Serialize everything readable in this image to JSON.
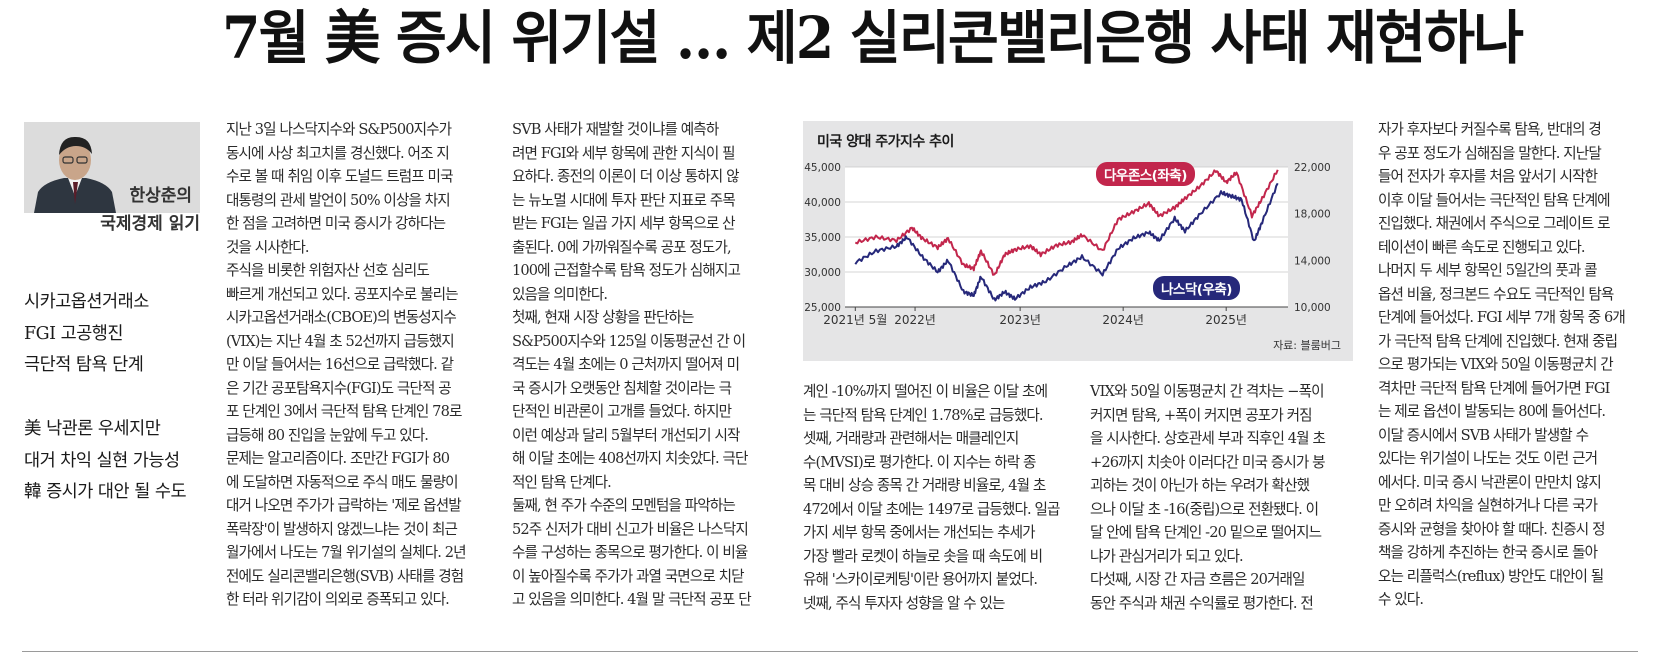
{
  "headline": "7월 美 증시 위기설 … 제2 실리콘밸리은행 사태 재현하나",
  "columnist": {
    "name": "한상춘의",
    "column_title": "국제경제 읽기"
  },
  "subheads": [
    [
      "시카고옵션거래소",
      "FGI 고공행진",
      "극단적 탐욕 단계"
    ],
    [
      "美 낙관론 우세지만",
      "대거 차익 실현 가능성",
      "韓 증시가 대안 될 수도"
    ]
  ],
  "columns": [
    [
      "지난 3일 나스닥지수와 S&P500지수가",
      "동시에 사상 최고치를 경신했다. 어조 지",
      "수로 볼 때 취임 이후 도널드 트럼프 미국",
      "대통령의 관세 발언이 50% 이상을 차지",
      "한 점을 고려하면 미국 증시가 강하다는",
      "것을 시사한다.",
      "  주식을 비롯한 위험자산 선호 심리도",
      "빠르게 개선되고 있다. 공포지수로 불리는",
      "시카고옵션거래소(CBOE)의 변동성지수",
      "(VIX)는 지난 4월 초 52선까지 급등했지",
      "만 이달 들어서는 16선으로 급락했다. 같",
      "은 기간 공포탐욕지수(FGI)도 극단적 공",
      "포 단계인 3에서 극단적 탐욕 단계인 78로",
      "급등해 80 진입을 눈앞에 두고 있다.",
      "  문제는 알고리즘이다. 조만간 FGI가 80",
      "에 도달하면 자동적으로 주식 매도 물량이",
      "대거 나오면 주가가 급락하는 '제로 옵션발",
      "폭락장'이 발생하지 않겠느냐는 것이 최근",
      "월가에서 나도는 7월 위기설의 실체다. 2년",
      "전에도 실리콘밸리은행(SVB) 사태를 경험",
      "한 터라 위기감이 의외로 증폭되고 있다."
    ],
    [
      "  SVB 사태가 재발할 것이냐를 예측하",
      "려면 FGI와 세부 항목에 관한 지식이 필",
      "요하다. 종전의 이론이 더 이상 통하지 않",
      "는 뉴노멀 시대에 투자 판단 지표로 주목",
      "받는 FGI는 일곱 가지 세부 항목으로 산",
      "출된다. 0에 가까워질수록 공포 정도가,",
      "100에 근접할수록 탐욕 정도가 심해지고",
      "있음을 의미한다.",
      "  첫째, 현재 시장 상황을 판단하는",
      "S&P500지수와 125일 이동평균선 간 이",
      "격도는 4월 초에는 0 근처까지 떨어져 미",
      "국 증시가 오랫동안 침체할 것이라는 극",
      "단적인 비관론이 고개를 들었다. 하지만",
      "이런 예상과 달리 5월부터 개선되기 시작",
      "해 이달 초에는 408선까지 치솟았다. 극단",
      "적인 탐욕 단계다.",
      "  둘째, 현 주가 수준의 모멘텀을 파악하는",
      "52주 신저가 대비 신고가 비율은 나스닥지",
      "수를 구성하는 종목으로 평가한다. 이 비율",
      "이 높아질수록 주가가 과열 국면으로 치닫",
      "고 있음을 의미한다. 4월 말 극단적 공포 단"
    ],
    [
      "계인 -10%까지 떨어진 이 비율은 이달 초에",
      "는 극단적 탐욕 단계인 1.78%로 급등했다.",
      "  셋째, 거래량과 관련해서는 매클레인지",
      "수(MVSI)로 평가한다. 이 지수는 하락 종",
      "목 대비 상승 종목 간 거래량 비율로, 4월 초",
      "472에서 이달 초에는 1497로 급등했다. 일곱",
      "가지 세부 항목 중에서는 개선되는 추세가",
      "가장 빨라 로켓이 하늘로 솟을 때 속도에 비",
      "유해 '스카이로케팅'이란 용어까지 붙었다.",
      "  넷째, 주식 투자자 성향을 알 수 있는"
    ],
    [
      "VIX와 50일 이동평균치 간 격차는 −폭이",
      "커지면 탐욕, +폭이 커지면 공포가 커짐",
      "을 시사한다. 상호관세 부과 직후인 4월 초",
      "+26까지 치솟아 이러다간 미국 증시가 붕",
      "괴하는 것이 아닌가 하는 우려가 확산했",
      "으나 이달 초 -16(중립)으로 전환됐다. 이",
      "달 안에 탐욕 단계인 -20 밑으로 떨어지느",
      "냐가 관심거리가 되고 있다.",
      "  다섯째, 시장 간 자금 흐름은 20거래일",
      "동안 주식과 채권 수익률로 평가한다. 전"
    ],
    [
      "자가 후자보다 커질수록 탐욕, 반대의 경",
      "우 공포 정도가 심해짐을 말한다. 지난달",
      "들어 전자가 후자를 처음 앞서기 시작한",
      "이후 이달 들어서는 극단적인 탐욕 단계에",
      "진입했다. 채권에서 주식으로 그레이트 로",
      "테이션이 빠른 속도로 진행되고 있다.",
      "  나머지 두 세부 항목인 5일간의 풋과 콜",
      "옵션 비율, 정크본드 수요도 극단적인 탐욕",
      "단계에 들어섰다. FGI 세부 7개 항목 중 6개",
      "가 극단적 탐욕 단계에 진입했다. 현재 중립",
      "으로 평가되는 VIX와 50일 이동평균치 간",
      "격차만 극단적 탐욕 단계에 들어가면 FGI",
      "는 제로 옵션이 발동되는 80에 들어선다.",
      "  이달 증시에서 SVB 사태가 발생할 수",
      "있다는 위기설이 나도는 것도 이런 근거",
      "에서다. 미국 증시 낙관론이 만만치 않지",
      "만 오히려 차익을 실현하거나 다른 국가",
      "증시와 균형을 찾아야 할 때다. 친증시 정",
      "책을 강하게 추진하는 한국 증시로 돌아",
      "오는 리플럭스(reflux) 방안도 대안이 될",
      "수 있다."
    ]
  ],
  "chart": {
    "title": "미국 양대 주가지수 추이",
    "source": "자료: 블룸버그",
    "colors": {
      "dow": "#c2264c",
      "nasdaq": "#26287a"
    },
    "chart_data": {
      "type": "line",
      "title": "미국 양대 주가지수 추이",
      "x_ticks": [
        "2021년 5월",
        "2022년",
        "2023년",
        "2024년",
        "2025년"
      ],
      "left_axis": {
        "ticks": [
          "45,000",
          "40,000",
          "35,000",
          "30,000",
          "25,000"
        ],
        "ylim": [
          25000,
          45000
        ]
      },
      "right_axis": {
        "ticks": [
          "22,000",
          "18,000",
          "14,000",
          "10,000"
        ],
        "ylim": [
          10000,
          22000
        ]
      },
      "series": [
        {
          "name": "다우존스(좌축)",
          "axis": "left",
          "points": [
            [
              2021.4,
              34200
            ],
            [
              2021.6,
              35000
            ],
            [
              2021.8,
              34500
            ],
            [
              2021.95,
              36300
            ],
            [
              2022.05,
              34800
            ],
            [
              2022.2,
              33500
            ],
            [
              2022.3,
              34800
            ],
            [
              2022.45,
              31000
            ],
            [
              2022.55,
              30500
            ],
            [
              2022.62,
              33000
            ],
            [
              2022.75,
              29500
            ],
            [
              2022.85,
              32500
            ],
            [
              2022.95,
              33200
            ],
            [
              2023.1,
              33700
            ],
            [
              2023.2,
              32500
            ],
            [
              2023.35,
              33800
            ],
            [
              2023.5,
              34300
            ],
            [
              2023.6,
              35300
            ],
            [
              2023.8,
              33000
            ],
            [
              2023.95,
              37500
            ],
            [
              2024.1,
              38600
            ],
            [
              2024.25,
              39800
            ],
            [
              2024.35,
              38000
            ],
            [
              2024.5,
              39200
            ],
            [
              2024.6,
              40500
            ],
            [
              2024.75,
              42300
            ],
            [
              2024.9,
              44500
            ],
            [
              2025.0,
              42800
            ],
            [
              2025.1,
              44200
            ],
            [
              2025.25,
              38000
            ],
            [
              2025.35,
              40500
            ],
            [
              2025.5,
              44600
            ]
          ]
        },
        {
          "name": "나스닥(우축)",
          "axis": "right",
          "points": [
            [
              2021.4,
              13800
            ],
            [
              2021.6,
              14800
            ],
            [
              2021.8,
              15200
            ],
            [
              2021.9,
              16000
            ],
            [
              2022.05,
              14300
            ],
            [
              2022.2,
              13000
            ],
            [
              2022.3,
              14000
            ],
            [
              2022.45,
              11300
            ],
            [
              2022.55,
              11000
            ],
            [
              2022.62,
              12600
            ],
            [
              2022.75,
              10600
            ],
            [
              2022.85,
              11300
            ],
            [
              2022.95,
              10700
            ],
            [
              2023.1,
              11700
            ],
            [
              2023.25,
              12200
            ],
            [
              2023.45,
              13500
            ],
            [
              2023.6,
              14300
            ],
            [
              2023.8,
              12800
            ],
            [
              2023.95,
              15000
            ],
            [
              2024.1,
              15900
            ],
            [
              2024.25,
              16400
            ],
            [
              2024.35,
              15700
            ],
            [
              2024.5,
              17600
            ],
            [
              2024.6,
              16500
            ],
            [
              2024.75,
              18000
            ],
            [
              2024.95,
              19800
            ],
            [
              2025.05,
              19500
            ],
            [
              2025.15,
              19200
            ],
            [
              2025.27,
              15600
            ],
            [
              2025.35,
              17300
            ],
            [
              2025.5,
              20600
            ]
          ]
        }
      ]
    }
  }
}
